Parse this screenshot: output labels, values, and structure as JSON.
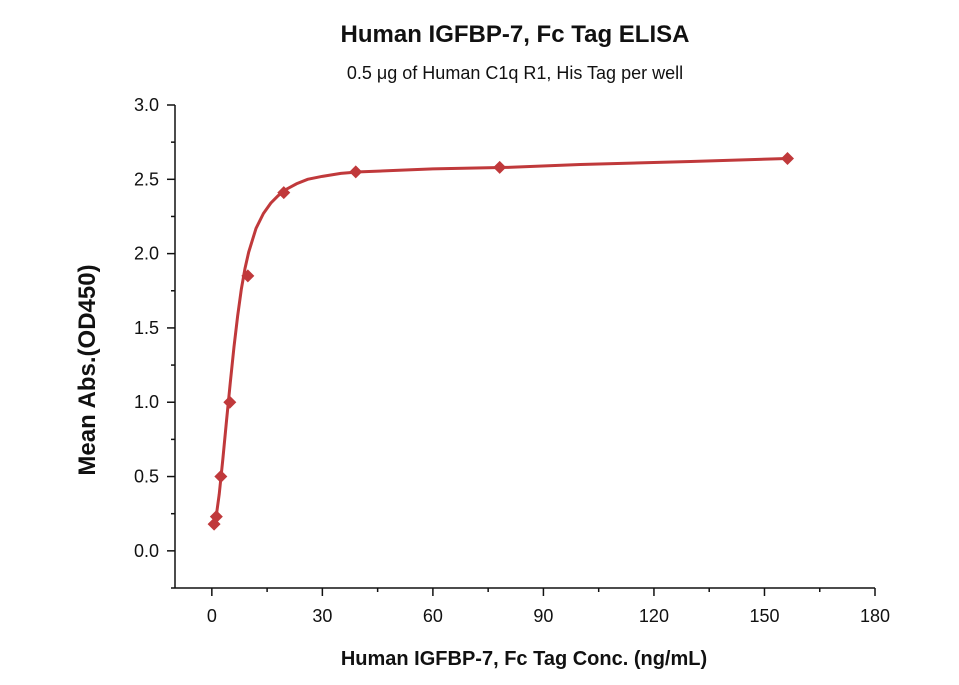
{
  "chart_data": {
    "type": "scatter",
    "title": "Human IGFBP-7, Fc Tag ELISA",
    "subtitle": "0.5 μg of Human C1q R1, His Tag per well",
    "xlabel": "Human IGFBP-7, Fc Tag Conc. (ng/mL)",
    "ylabel": "Mean Abs.(OD450)",
    "xlim": [
      -10,
      180
    ],
    "ylim": [
      -0.25,
      3.0
    ],
    "x_ticks": [
      "0",
      "30",
      "60",
      "90",
      "120",
      "150",
      "180"
    ],
    "y_ticks": [
      "0.0",
      "0.5",
      "1.0",
      "1.5",
      "2.0",
      "2.5",
      "3.0"
    ],
    "series": [
      {
        "x": [
          0.61,
          1.22,
          2.44,
          4.88,
          9.77,
          19.53,
          39.06,
          78.13,
          156.25
        ],
        "y": [
          0.18,
          0.23,
          0.5,
          1.0,
          1.85,
          2.41,
          2.55,
          2.58,
          2.64
        ],
        "marker": "diamond",
        "color": "#c0393b",
        "fit": "4PL",
        "fit_curve": {
          "x": [
            0.5,
            1,
            2,
            3,
            4,
            5,
            6,
            7,
            8,
            9,
            10,
            12,
            14,
            16,
            18,
            20,
            23,
            26,
            30,
            35,
            40,
            50,
            60,
            80,
            100,
            130,
            156.25
          ],
          "y": [
            0.15,
            0.2,
            0.38,
            0.62,
            0.88,
            1.13,
            1.37,
            1.58,
            1.76,
            1.9,
            2.01,
            2.17,
            2.27,
            2.34,
            2.39,
            2.43,
            2.47,
            2.5,
            2.52,
            2.54,
            2.55,
            2.56,
            2.57,
            2.58,
            2.6,
            2.62,
            2.64
          ]
        }
      }
    ],
    "grid": false,
    "legend": "none"
  }
}
